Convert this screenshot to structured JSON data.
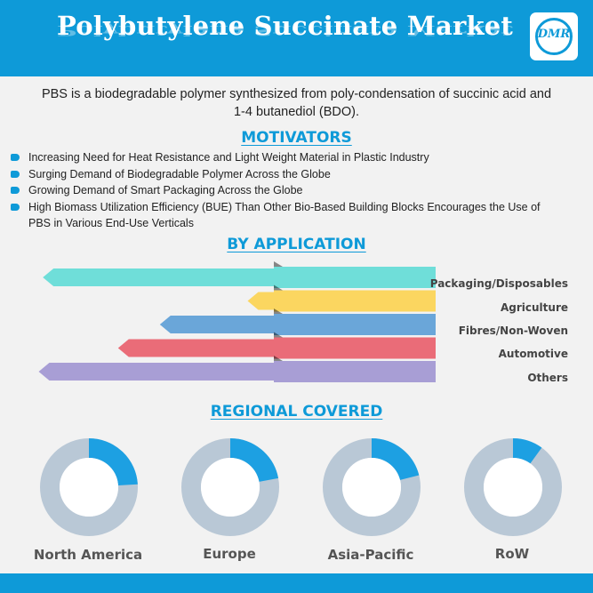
{
  "header": {
    "title": "Polybutylene Succinate Market",
    "logo_text": "DMR"
  },
  "intro": "PBS is a biodegradable polymer synthesized from poly-condensation of succinic acid and 1-4 butanediol (BDO).",
  "motivators": {
    "title": "MOTIVATORS",
    "items": [
      "Increasing Need for Heat Resistance and Light Weight Material in Plastic Industry",
      "Surging Demand of Biodegradable Polymer Across the Globe",
      "Growing Demand of Smart Packaging Across the Globe",
      "High Biomass Utilization Efficiency (BUE) Than Other Bio-Based Building Blocks Encourages the Use of PBS in Various End-Use Verticals"
    ]
  },
  "application": {
    "title": "BY APPLICATION",
    "items": [
      {
        "label": "Packaging/Disposables",
        "value": 0.94,
        "color": "#6fded9"
      },
      {
        "label": "Agriculture",
        "value": 0.45,
        "color": "#fbd660"
      },
      {
        "label": "Fibres/Non-Woven",
        "value": 0.66,
        "color": "#6aa6d9"
      },
      {
        "label": "Automotive",
        "value": 0.76,
        "color": "#ea6c78"
      },
      {
        "label": "Others",
        "value": 0.95,
        "color": "#a89ed5"
      }
    ]
  },
  "regional": {
    "title": "REGIONAL COVERED",
    "ring_color": "#b9c8d6",
    "highlight_color": "#1da0e2",
    "items": [
      {
        "label": "North America",
        "share": 0.24
      },
      {
        "label": "Europe",
        "share": 0.22
      },
      {
        "label": "Asia-Pacific",
        "share": 0.21
      },
      {
        "label": "RoW",
        "share": 0.1
      }
    ]
  }
}
